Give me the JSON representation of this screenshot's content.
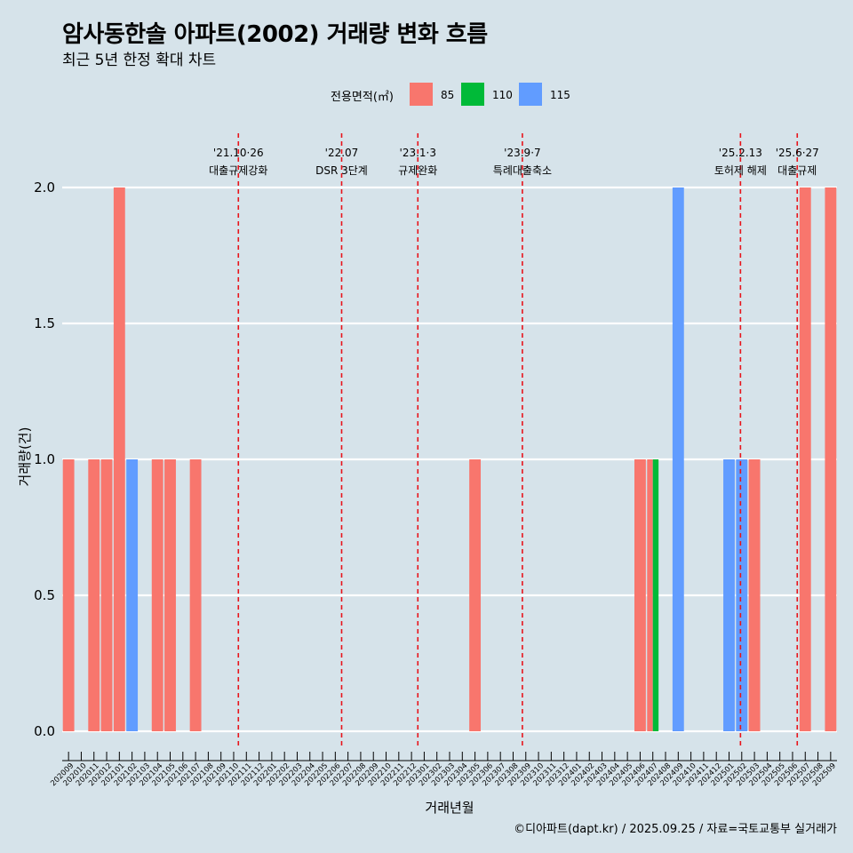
{
  "chart_data": {
    "type": "bar",
    "title": "암사동한솔 아파트(2002) 거래량 변화 흐름",
    "subtitle": "최근 5년 한정 확대 차트",
    "xlabel": "거래년월",
    "ylabel": "거래량(건)",
    "ylim": [
      0,
      2
    ],
    "yticks": [
      "0.0",
      "0.5",
      "1.0",
      "1.5",
      "2.0"
    ],
    "legend_title": "전용면적(㎡)",
    "series_colors": {
      "85": "#f8766d",
      "110": "#00ba38",
      "115": "#619cff"
    },
    "legend_items": [
      {
        "label": "85",
        "color": "#f8766d"
      },
      {
        "label": "110",
        "color": "#00ba38"
      },
      {
        "label": "115",
        "color": "#619cff"
      }
    ],
    "categories": [
      "202009",
      "202010",
      "202011",
      "202012",
      "202101",
      "202102",
      "202103",
      "202104",
      "202105",
      "202106",
      "202107",
      "202108",
      "202109",
      "202110",
      "202111",
      "202112",
      "202201",
      "202202",
      "202203",
      "202204",
      "202205",
      "202206",
      "202207",
      "202208",
      "202209",
      "202210",
      "202211",
      "202212",
      "202301",
      "202302",
      "202303",
      "202304",
      "202305",
      "202306",
      "202307",
      "202308",
      "202309",
      "202310",
      "202311",
      "202312",
      "202401",
      "202402",
      "202403",
      "202404",
      "202405",
      "202406",
      "202407",
      "202408",
      "202409",
      "202410",
      "202411",
      "202412",
      "202501",
      "202502",
      "202503",
      "202504",
      "202505",
      "202506",
      "202507",
      "202508",
      "202509"
    ],
    "bars": [
      {
        "month": "202009",
        "area": "85",
        "value": 1
      },
      {
        "month": "202011",
        "area": "85",
        "value": 1
      },
      {
        "month": "202012",
        "area": "85",
        "value": 1
      },
      {
        "month": "202101",
        "area": "85",
        "value": 2
      },
      {
        "month": "202102",
        "area": "115",
        "value": 1
      },
      {
        "month": "202104",
        "area": "85",
        "value": 1
      },
      {
        "month": "202105",
        "area": "85",
        "value": 1
      },
      {
        "month": "202107",
        "area": "85",
        "value": 1
      },
      {
        "month": "202305",
        "area": "85",
        "value": 1
      },
      {
        "month": "202406",
        "area": "85",
        "value": 1
      },
      {
        "month": "202407",
        "area": "85",
        "value": 1
      },
      {
        "month": "202407",
        "area": "110",
        "value": 1
      },
      {
        "month": "202409",
        "area": "115",
        "value": 2
      },
      {
        "month": "202501",
        "area": "115",
        "value": 1
      },
      {
        "month": "202502",
        "area": "115",
        "value": 1
      },
      {
        "month": "202503",
        "area": "85",
        "value": 1
      },
      {
        "month": "202507",
        "area": "85",
        "value": 2
      },
      {
        "month": "202509",
        "area": "85",
        "value": 2
      }
    ],
    "annotations": [
      {
        "month": "202110",
        "offset": 0.87,
        "date": "'21.10·26",
        "label": "대출규제강화"
      },
      {
        "month": "202207",
        "offset": 0,
        "date": "'22.07",
        "label": "DSR 3단계"
      },
      {
        "month": "202301",
        "offset": 0,
        "date": "'23.1·3",
        "label": "규제완화"
      },
      {
        "month": "202309",
        "offset": 0.23,
        "date": "'23.9·7",
        "label": "특례대출축소"
      },
      {
        "month": "202502",
        "offset": 0.4,
        "date": "'25.2.13",
        "label": "토허제 해제"
      },
      {
        "month": "202506",
        "offset": 0.87,
        "date": "'25.6·27",
        "label": "대출규제"
      }
    ]
  },
  "caption": "©디아파트(dapt.kr) / 2025.09.25 / 자료=국토교통부 실거래가"
}
